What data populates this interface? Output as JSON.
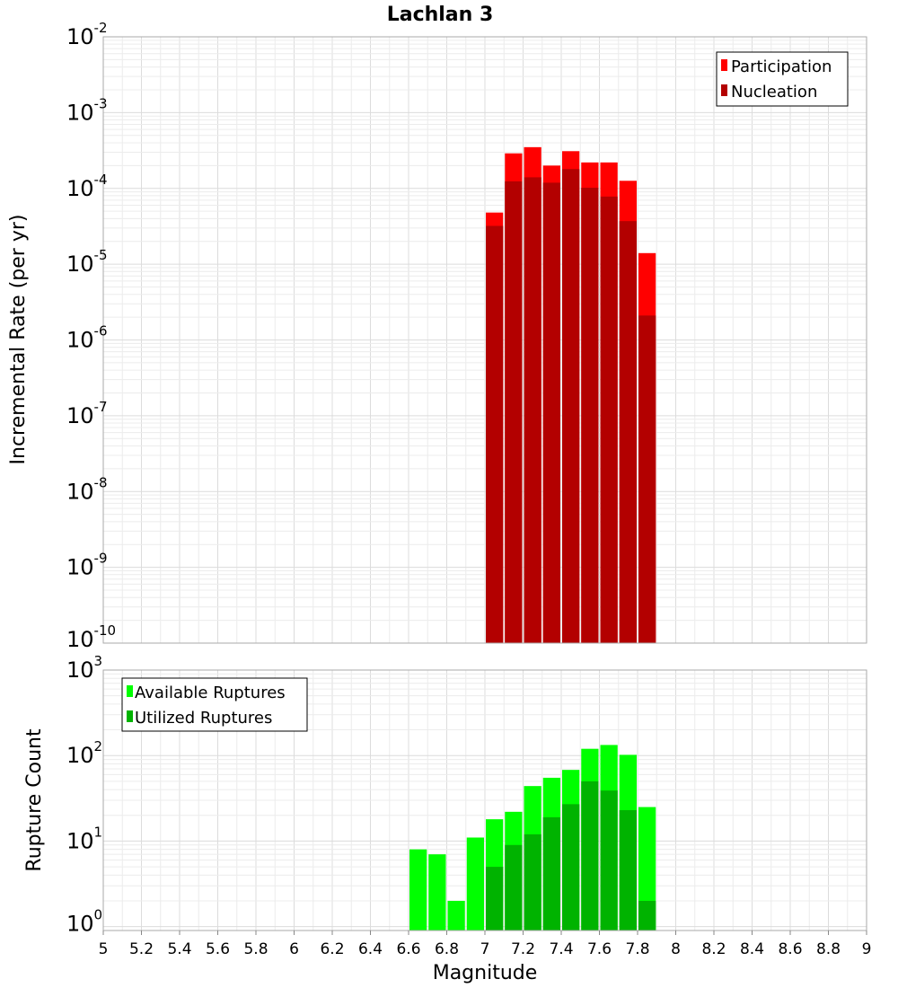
{
  "chart_data": [
    {
      "type": "bar",
      "title": "Lachlan 3",
      "ylabel": "Incremental Rate (per yr)",
      "xlabel": "",
      "yscale": "log",
      "ylim_exponents": [
        -10,
        -2
      ],
      "xlim": [
        5,
        9
      ],
      "bar_width": 0.1,
      "legend_position": "top-right",
      "colors": {
        "participation": "#ff0000",
        "nucleation": "#b30000"
      },
      "series": [
        {
          "name": "Participation",
          "x": [
            7.05,
            7.15,
            7.25,
            7.35,
            7.45,
            7.55,
            7.65,
            7.75,
            7.85
          ],
          "values": [
            4.8e-05,
            0.00029,
            0.00035,
            0.0002,
            0.00031,
            0.00022,
            0.00022,
            0.000126,
            1.4e-05
          ]
        },
        {
          "name": "Nucleation",
          "x": [
            7.05,
            7.15,
            7.25,
            7.35,
            7.45,
            7.55,
            7.65,
            7.75,
            7.85
          ],
          "values": [
            3.2e-05,
            0.000124,
            0.00014,
            0.000119,
            0.00018,
            0.000102,
            7.8e-05,
            3.7e-05,
            2.1e-06
          ]
        }
      ]
    },
    {
      "type": "bar",
      "ylabel": "Rupture Count",
      "xlabel": "Magnitude",
      "yscale": "log",
      "ylim_exponents": [
        0,
        3
      ],
      "xlim": [
        5,
        9
      ],
      "bar_width": 0.1,
      "legend_position": "top-left",
      "colors": {
        "available": "#00ff00",
        "utilized": "#00b300"
      },
      "x_ticks": [
        "5",
        "5.2",
        "5.4",
        "5.6",
        "5.8",
        "6",
        "6.2",
        "6.4",
        "6.6",
        "6.8",
        "7",
        "7.2",
        "7.4",
        "7.6",
        "7.8",
        "8",
        "8.2",
        "8.4",
        "8.6",
        "8.8",
        "9"
      ],
      "series": [
        {
          "name": "Available Ruptures",
          "x": [
            6.65,
            6.75,
            6.85,
            6.95,
            7.05,
            7.15,
            7.25,
            7.35,
            7.45,
            7.55,
            7.65,
            7.75,
            7.85
          ],
          "values": [
            8,
            7,
            2,
            11,
            18,
            22,
            44,
            55,
            68,
            120,
            133,
            102,
            25
          ]
        },
        {
          "name": "Utilized Ruptures",
          "x": [
            6.65,
            6.75,
            6.85,
            6.95,
            7.05,
            7.15,
            7.25,
            7.35,
            7.45,
            7.55,
            7.65,
            7.75,
            7.85
          ],
          "values": [
            0,
            0,
            0,
            0,
            5,
            9,
            12,
            19,
            27,
            50,
            39,
            23,
            2
          ]
        }
      ]
    }
  ]
}
